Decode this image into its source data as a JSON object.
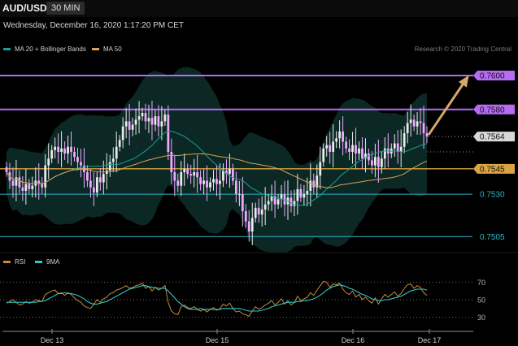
{
  "header": {
    "symbol": "AUD/USD",
    "interval": "30 MIN"
  },
  "timestamp": "Wednesday, December 16, 2020 1:17:20 PM CET",
  "legend": [
    {
      "label": "MA 20 + Bollinger Bands",
      "color": "#1a9e96"
    },
    {
      "label": "MA 50",
      "color": "#d7a35a"
    }
  ],
  "credit": "Research © 2020 Trading Central",
  "rsi_legend": [
    {
      "label": "RSI",
      "color": "#c58a3a"
    },
    {
      "label": "9MA",
      "color": "#2ec7cf"
    }
  ],
  "colors": {
    "up": "#eaeaea",
    "down": "#f0a8ff",
    "resistance": "#b36cf2",
    "support_main": "#d9a441",
    "support": "#2bb5c8",
    "arrow": "#d6a76a",
    "current": "#d0d0d0",
    "bands_fill": "#0d2f2c"
  },
  "chart_data": {
    "type": "candlestick",
    "ylim": [
      0.7497,
      0.7612
    ],
    "x_ticks": [
      "Dec 13",
      "Dec 15",
      "Dec 16",
      "Dec 17"
    ],
    "levels": [
      {
        "value": 0.76,
        "label": "0.7600",
        "kind": "resistance"
      },
      {
        "value": 0.758,
        "label": "0.7580",
        "kind": "resistance"
      },
      {
        "value": 0.7564,
        "label": "0.7564",
        "kind": "current"
      },
      {
        "value": 0.7545,
        "label": "0.7545",
        "kind": "pivot"
      },
      {
        "value": 0.753,
        "label": "0.7530",
        "kind": "support"
      },
      {
        "value": 0.7505,
        "label": "0.7505",
        "kind": "support"
      }
    ],
    "closes": [
      0.7543,
      0.7538,
      0.7535,
      0.754,
      0.7534,
      0.7532,
      0.7536,
      0.7533,
      0.7535,
      0.7538,
      0.7536,
      0.7534,
      0.7547,
      0.7551,
      0.7556,
      0.7558,
      0.7555,
      0.7557,
      0.7554,
      0.7558,
      0.7555,
      0.7552,
      0.7549,
      0.7547,
      0.7543,
      0.7538,
      0.7534,
      0.7531,
      0.754,
      0.7537,
      0.7542,
      0.7544,
      0.7549,
      0.7551,
      0.7558,
      0.7562,
      0.757,
      0.7573,
      0.7568,
      0.7571,
      0.7574,
      0.7576,
      0.7578,
      0.7573,
      0.7575,
      0.7571,
      0.7576,
      0.757,
      0.7573,
      0.7577,
      0.7555,
      0.7543,
      0.7538,
      0.7535,
      0.7543,
      0.7545,
      0.7542,
      0.7541,
      0.7543,
      0.754,
      0.7536,
      0.7538,
      0.7534,
      0.7537,
      0.7539,
      0.7536,
      0.7538,
      0.7544,
      0.7542,
      0.7545,
      0.7538,
      0.753,
      0.753,
      0.752,
      0.7514,
      0.7508,
      0.7516,
      0.7522,
      0.7518,
      0.7521,
      0.7524,
      0.7526,
      0.7529,
      0.7524,
      0.7527,
      0.753,
      0.7524,
      0.7528,
      0.7523,
      0.7526,
      0.7533,
      0.7528,
      0.753,
      0.7532,
      0.7538,
      0.7534,
      0.7541,
      0.7549,
      0.7557,
      0.7559,
      0.7555,
      0.7561,
      0.7563,
      0.7567,
      0.7561,
      0.7557,
      0.7555,
      0.7559,
      0.7554,
      0.7557,
      0.7551,
      0.7554,
      0.755,
      0.7547,
      0.7552,
      0.7546,
      0.7551,
      0.7557,
      0.7554,
      0.7557,
      0.756,
      0.7555,
      0.7558,
      0.7566,
      0.7572,
      0.7574,
      0.757,
      0.7573,
      0.7572,
      0.7566,
      0.7564
    ],
    "rsi": {
      "ticks": [
        30,
        50,
        70
      ],
      "ylim": [
        25,
        75
      ],
      "rsi": [
        46,
        48,
        50,
        47,
        44,
        45,
        48,
        46,
        47,
        50,
        49,
        48,
        56,
        58,
        60,
        61,
        57,
        58,
        55,
        58,
        56,
        52,
        49,
        47,
        43,
        41,
        40,
        45,
        50,
        47,
        51,
        53,
        57,
        58,
        61,
        62,
        64,
        66,
        63,
        64,
        66,
        67,
        69,
        63,
        65,
        60,
        64,
        61,
        63,
        66,
        47,
        37,
        34,
        33,
        42,
        44,
        41,
        40,
        42,
        39,
        37,
        39,
        36,
        39,
        41,
        38,
        40,
        45,
        43,
        46,
        40,
        36,
        37,
        34,
        33,
        31,
        37,
        42,
        39,
        41,
        44,
        46,
        49,
        44,
        47,
        51,
        45,
        49,
        44,
        47,
        54,
        49,
        51,
        53,
        58,
        55,
        61,
        66,
        71,
        70,
        64,
        68,
        67,
        69,
        62,
        58,
        56,
        60,
        53,
        56,
        50,
        53,
        49,
        46,
        52,
        45,
        51,
        56,
        53,
        56,
        59,
        54,
        57,
        63,
        67,
        68,
        63,
        66,
        64,
        58,
        55
      ],
      "ma9": [
        47,
        47,
        47,
        47,
        47,
        47,
        47,
        47,
        47,
        47,
        48,
        48,
        49,
        51,
        53,
        55,
        57,
        57,
        58,
        57,
        57,
        56,
        55,
        53,
        51,
        48,
        46,
        45,
        45,
        46,
        47,
        48,
        50,
        52,
        54,
        56,
        58,
        60,
        62,
        63,
        64,
        65,
        66,
        66,
        65,
        64,
        64,
        63,
        63,
        63,
        60,
        56,
        52,
        48,
        45,
        42,
        40,
        39,
        39,
        39,
        40,
        39,
        39,
        39,
        39,
        39,
        39,
        40,
        40,
        40,
        40,
        40,
        40,
        39,
        38,
        37,
        37,
        37,
        37,
        38,
        39,
        40,
        42,
        43,
        44,
        45,
        46,
        47,
        47,
        47,
        48,
        48,
        49,
        49,
        50,
        51,
        53,
        55,
        58,
        61,
        63,
        65,
        66,
        67,
        66,
        65,
        63,
        62,
        60,
        58,
        56,
        55,
        53,
        51,
        50,
        49,
        49,
        50,
        50,
        51,
        52,
        53,
        54,
        56,
        58,
        60,
        61,
        62,
        62,
        62,
        61
      ]
    }
  }
}
